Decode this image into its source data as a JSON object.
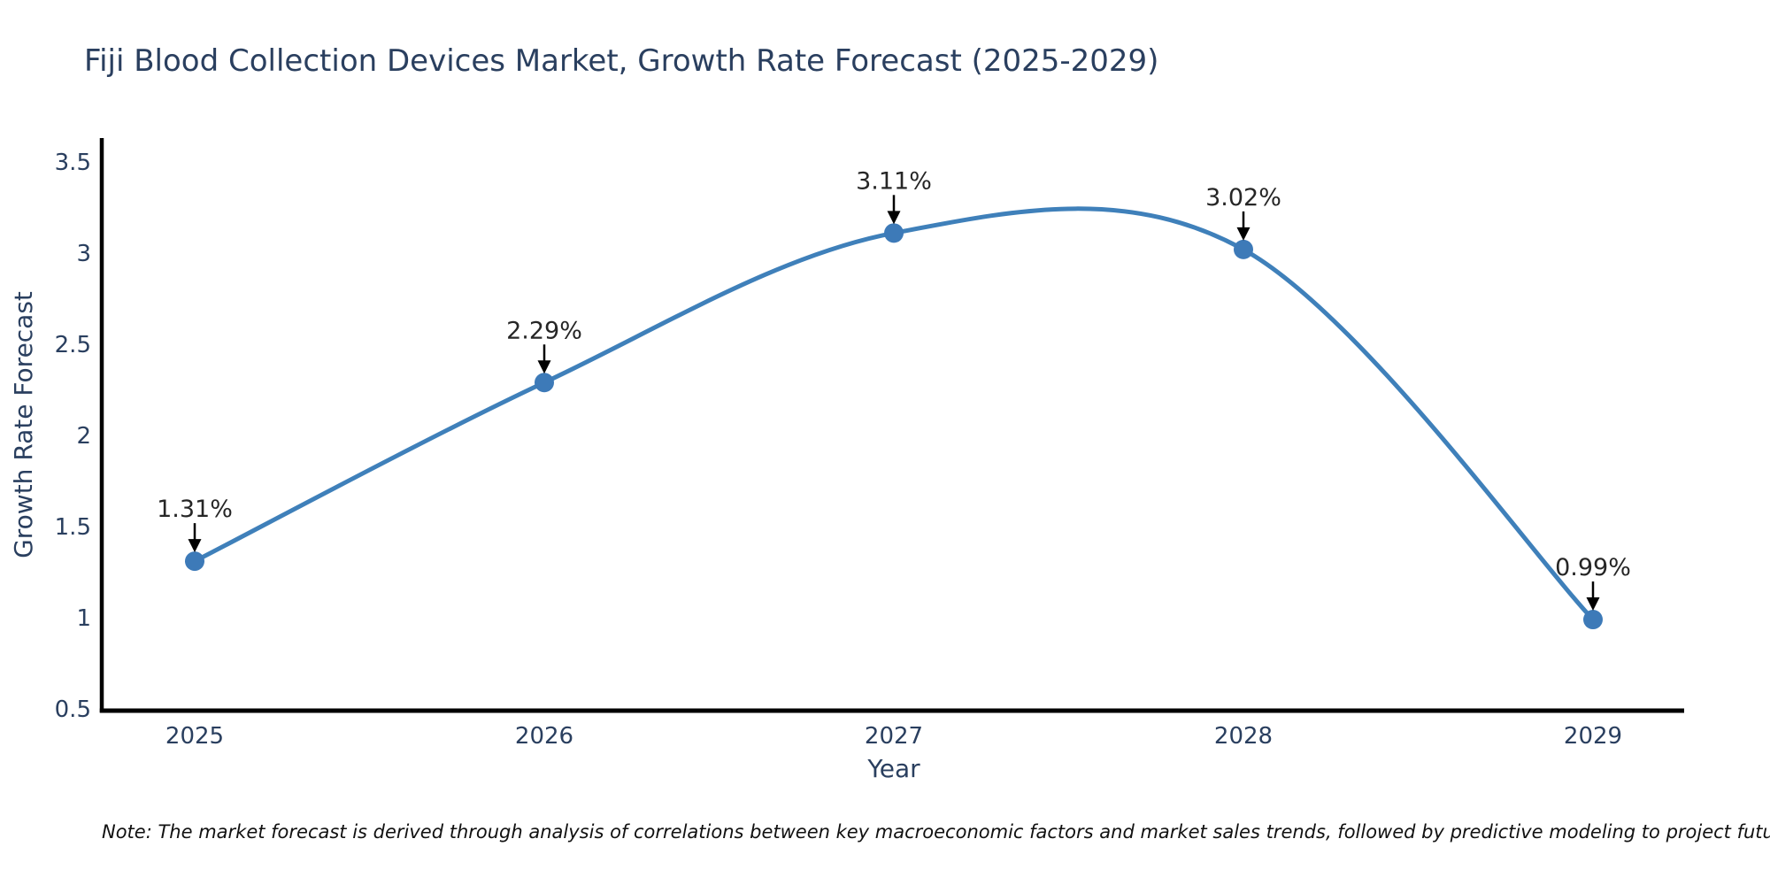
{
  "page": {
    "background": "#ffffff"
  },
  "chart_data": {
    "type": "line",
    "title": "Fiji Blood Collection Devices Market, Growth Rate Forecast (2025-2029)",
    "xlabel": "Year",
    "ylabel": "Growth Rate Forecast",
    "categories": [
      "2025",
      "2026",
      "2027",
      "2028",
      "2029"
    ],
    "series": [
      {
        "name": "Growth Rate Forecast",
        "values": [
          1.31,
          2.29,
          3.11,
          3.02,
          0.99
        ]
      }
    ],
    "point_labels": [
      "1.31%",
      "2.29%",
      "3.11%",
      "3.02%",
      "0.99%"
    ],
    "x_tick_labels": [
      "2025",
      "2026",
      "2027",
      "2028",
      "2029"
    ],
    "y_tick_labels": [
      "0.5",
      "1",
      "1.5",
      "2",
      "2.5",
      "3",
      "3.5"
    ],
    "y_tick_values": [
      0.5,
      1,
      1.5,
      2,
      2.5,
      3,
      3.5
    ],
    "ylim": [
      0.5,
      3.6
    ],
    "grid": false,
    "legend_position": "none",
    "smooth_line": true,
    "annotation_style": "arrow-pointing-down-to-point",
    "note": "Note: The market forecast is derived through analysis of correlations between key macroeconomic factors and market sales trends, followed by predictive modeling to project future sales",
    "colors": {
      "line": "#3f80ba",
      "marker": "#3d7ab8",
      "arrow": "#000000",
      "spine": "#000000",
      "title_text": "#2a3f5f",
      "axis_text": "#2a3f5f",
      "annotation_text": "#262626",
      "note_text": "#111111"
    }
  }
}
